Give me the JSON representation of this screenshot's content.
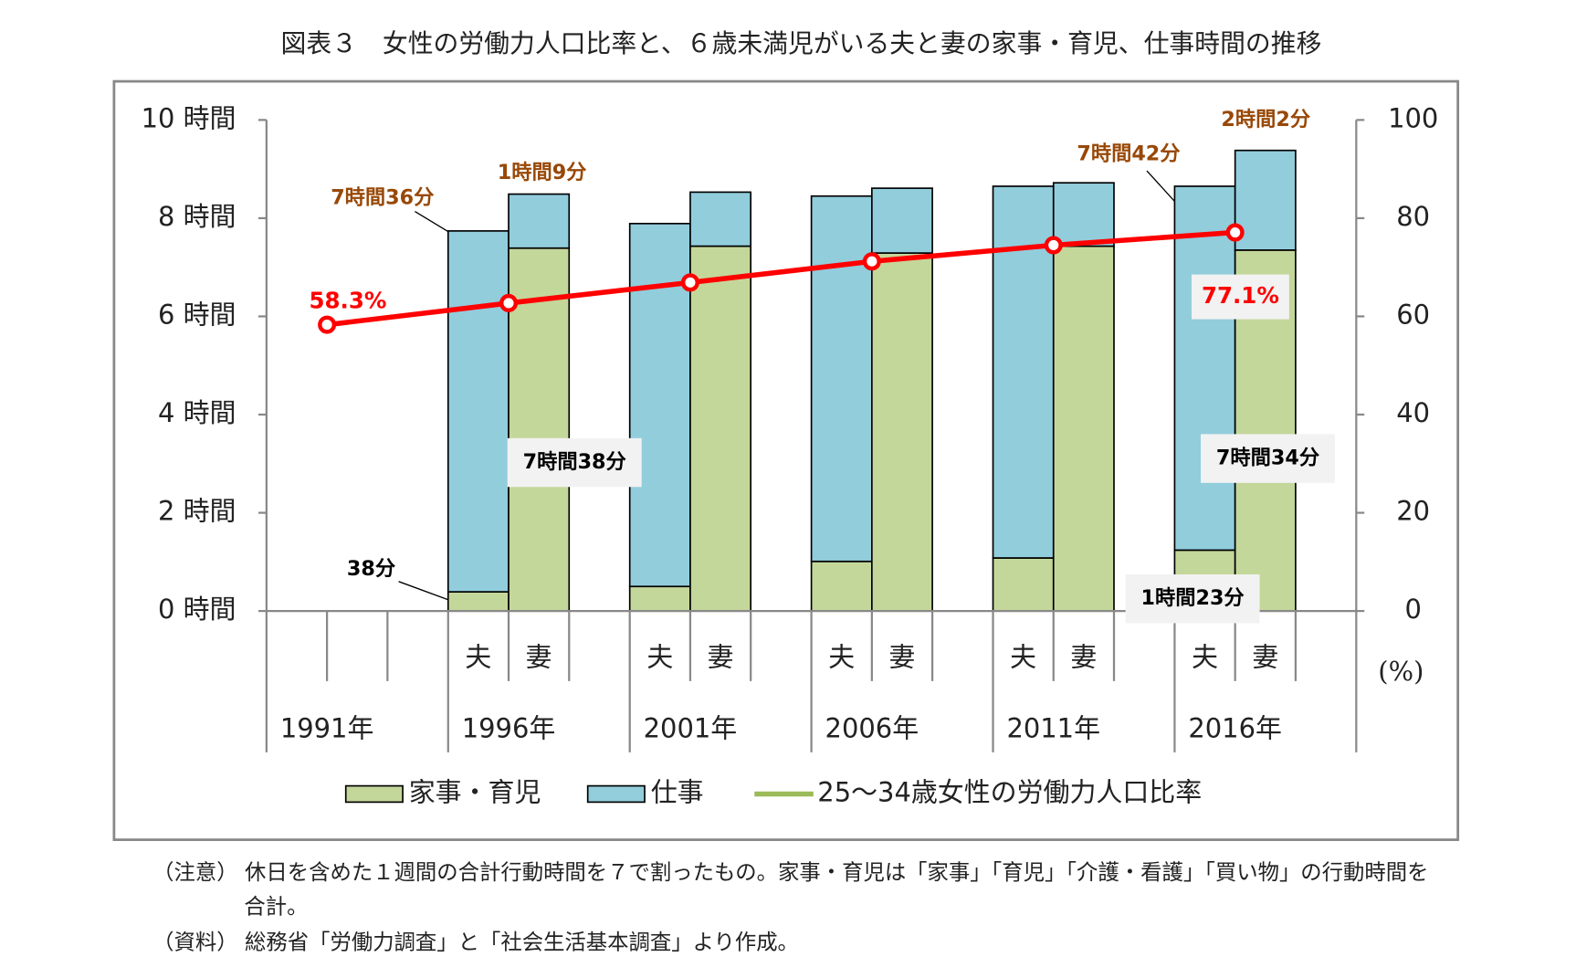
{
  "chart_data": {
    "type": "bar",
    "title": "図表３　女性の労働力人口比率と、６歳未満児がいる夫と妻の家事・育児、仕事時間の推移",
    "categories": [
      "1991年",
      "1996年",
      "2001年",
      "2006年",
      "2011年",
      "2016年"
    ],
    "subcategories": [
      "夫",
      "妻"
    ],
    "series": [
      {
        "name": "家事・育児",
        "color": "#c4d79b",
        "values": [
          [
            null,
            null
          ],
          [
            0.39,
            7.39
          ],
          [
            0.5,
            7.43
          ],
          [
            1.01,
            7.29
          ],
          [
            1.08,
            7.43
          ],
          [
            1.24,
            7.35
          ]
        ]
      },
      {
        "name": "仕事",
        "color": "#92cddc",
        "values": [
          [
            null,
            null
          ],
          [
            7.35,
            1.1
          ],
          [
            7.39,
            1.1
          ],
          [
            7.44,
            1.32
          ],
          [
            7.57,
            1.29
          ],
          [
            7.41,
            2.03
          ]
        ]
      },
      {
        "name": "25～34歳女性の労働力人口比率",
        "type": "line",
        "axis": "y2",
        "color": "#ff0000",
        "legend_color": "#9bbb59",
        "values": [
          58.3,
          62.7,
          66.9,
          71.2,
          74.5,
          77.1
        ],
        "value_labels": [
          "58.3%",
          null,
          null,
          null,
          null,
          "77.1%"
        ]
      }
    ],
    "ylim": [
      0,
      10
    ],
    "yticks": [
      {
        "value": 0,
        "label": "0 時間"
      },
      {
        "value": 2,
        "label": "2 時間"
      },
      {
        "value": 4,
        "label": "4 時間"
      },
      {
        "value": 6,
        "label": "6 時間"
      },
      {
        "value": 8,
        "label": "8 時間"
      },
      {
        "value": 10,
        "label": "10 時間"
      }
    ],
    "y2lim": [
      0,
      100
    ],
    "y2ticks": [
      0,
      20,
      40,
      60,
      80,
      100
    ],
    "y2label": "(%)",
    "annotations": [
      "7時間36分",
      "1時間9分",
      "7時間42分",
      "2時間2分",
      "38分",
      "7時間38分",
      "7時間34分",
      "1時間23分"
    ],
    "notes": [
      "（注意）  休日を含めた１週間の合計行動時間を７で割ったもの。家事・育児は「家事」「育児」「介護・看護」「買い物」の行動時間を",
      "合計。",
      "（資料）  総務省「労働力調査」と「社会生活基本調査」より作成。"
    ]
  }
}
